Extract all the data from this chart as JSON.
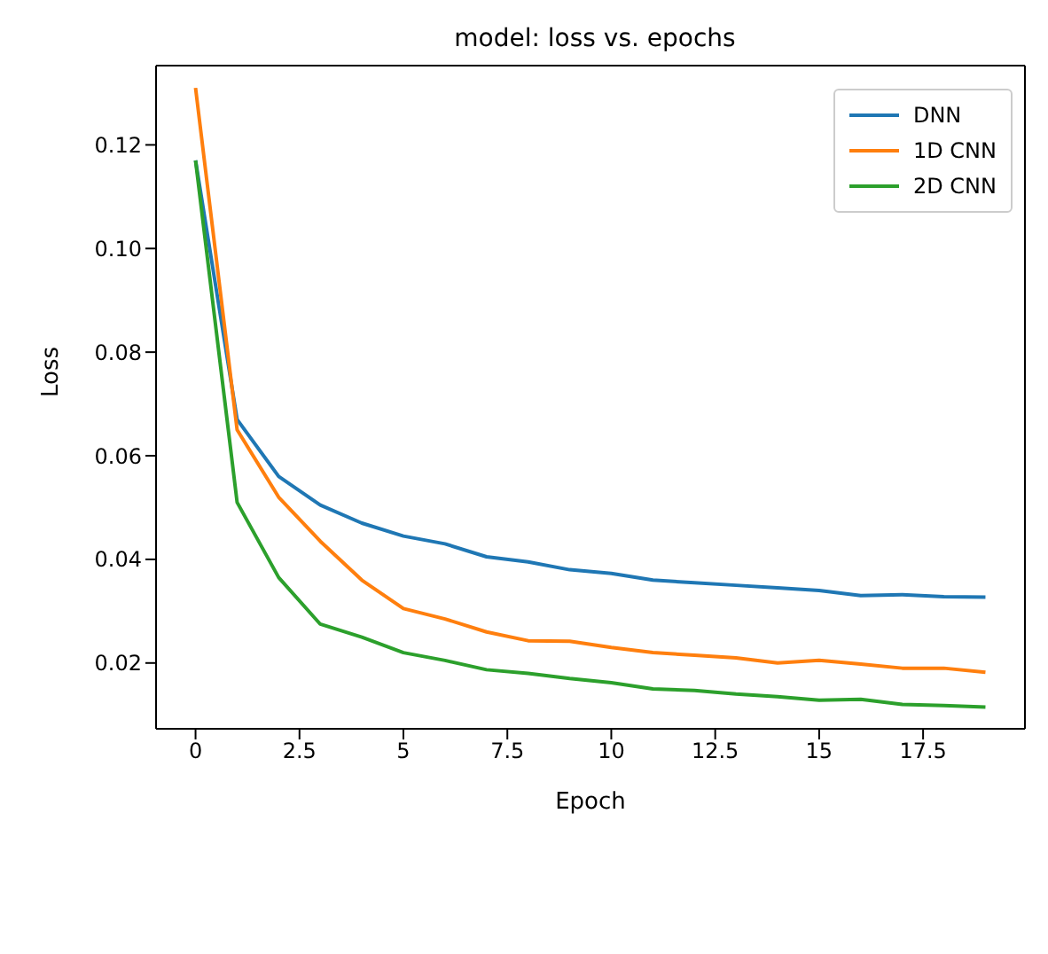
{
  "chart_data": {
    "type": "line",
    "title": "model: loss vs. epochs",
    "xlabel": "Epoch",
    "ylabel": "Loss",
    "x": [
      0,
      1,
      2,
      3,
      4,
      5,
      6,
      7,
      8,
      9,
      10,
      11,
      12,
      13,
      14,
      15,
      16,
      17,
      18,
      19
    ],
    "series": [
      {
        "name": "DNN",
        "color": "#1f77b4",
        "values": [
          0.117,
          0.067,
          0.056,
          0.0505,
          0.047,
          0.0445,
          0.043,
          0.0405,
          0.0395,
          0.038,
          0.0373,
          0.036,
          0.0355,
          0.035,
          0.0345,
          0.034,
          0.033,
          0.0332,
          0.0328,
          0.0327
        ]
      },
      {
        "name": "1D CNN",
        "color": "#ff7f0e",
        "values": [
          0.131,
          0.065,
          0.052,
          0.0435,
          0.036,
          0.0305,
          0.0285,
          0.026,
          0.0243,
          0.0242,
          0.023,
          0.022,
          0.0215,
          0.021,
          0.02,
          0.0205,
          0.0198,
          0.019,
          0.019,
          0.0182
        ]
      },
      {
        "name": "2D CNN",
        "color": "#2ca02c",
        "values": [
          0.117,
          0.051,
          0.0365,
          0.0275,
          0.025,
          0.022,
          0.0205,
          0.0187,
          0.018,
          0.017,
          0.0162,
          0.015,
          0.0147,
          0.014,
          0.0135,
          0.0128,
          0.013,
          0.012,
          0.0118,
          0.0115
        ]
      }
    ],
    "xlim": [
      -0.95,
      19.95
    ],
    "xticks": [
      0,
      2.5,
      5,
      7.5,
      10,
      12.5,
      15,
      17.5
    ],
    "ylim": [
      0.0073,
      0.1353
    ],
    "yticks": [
      0.02,
      0.04,
      0.06,
      0.08,
      {
        "value": 0.1,
        "label": "0.10"
      },
      0.12
    ],
    "grid": false,
    "legend": "top right",
    "marker": "none",
    "line_style": "solid"
  }
}
